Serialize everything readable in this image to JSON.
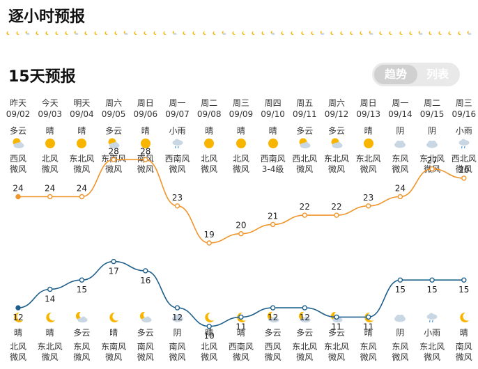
{
  "sections": {
    "hourly_title": "逐小时预报",
    "daily_title": "15天预报"
  },
  "toggle": {
    "trend_label": "趋势",
    "list_label": "列表"
  },
  "days": [
    {
      "day": "昨天",
      "date": "09/02",
      "day_weather": "多云",
      "day_icon": "cloud-sun-icon",
      "day_wind_dir": "西风",
      "day_wind_level": "微风",
      "night_icon": "moon-icon",
      "night_weather": "晴",
      "night_wind_dir": "北风",
      "night_wind_level": "微风"
    },
    {
      "day": "今天",
      "date": "09/03",
      "day_weather": "晴",
      "day_icon": "sun-icon",
      "day_wind_dir": "北风",
      "day_wind_level": "微风",
      "night_icon": "moon-icon",
      "night_weather": "晴",
      "night_wind_dir": "东北风",
      "night_wind_level": "微风"
    },
    {
      "day": "明天",
      "date": "09/04",
      "day_weather": "晴",
      "day_icon": "sun-icon",
      "day_wind_dir": "东北风",
      "day_wind_level": "微风",
      "night_icon": "cloud-moon-icon",
      "night_weather": "多云",
      "night_wind_dir": "东风",
      "night_wind_level": "微风"
    },
    {
      "day": "周六",
      "date": "09/05",
      "day_weather": "多云",
      "day_icon": "cloud-sun-icon",
      "day_wind_dir": "东南风",
      "day_wind_level": "微风",
      "night_icon": "moon-icon",
      "night_weather": "晴",
      "night_wind_dir": "东南风",
      "night_wind_level": "微风"
    },
    {
      "day": "周日",
      "date": "09/06",
      "day_weather": "晴",
      "day_icon": "sun-icon",
      "day_wind_dir": "南风",
      "day_wind_level": "微风",
      "night_icon": "cloud-moon-icon",
      "night_weather": "多云",
      "night_wind_dir": "南风",
      "night_wind_level": "微风"
    },
    {
      "day": "周一",
      "date": "09/07",
      "day_weather": "小雨",
      "day_icon": "rain-icon",
      "day_wind_dir": "西南风",
      "day_wind_level": "微风",
      "night_icon": "cloud-icon",
      "night_weather": "阴",
      "night_wind_dir": "南风",
      "night_wind_level": "微风"
    },
    {
      "day": "周二",
      "date": "09/08",
      "day_weather": "晴",
      "day_icon": "sun-icon",
      "day_wind_dir": "北风",
      "day_wind_level": "微风",
      "night_icon": "moon-icon",
      "night_weather": "晴",
      "night_wind_dir": "北风",
      "night_wind_level": "微风"
    },
    {
      "day": "周三",
      "date": "09/09",
      "day_weather": "晴",
      "day_icon": "sun-icon",
      "day_wind_dir": "北风",
      "day_wind_level": "微风",
      "night_icon": "moon-icon",
      "night_weather": "晴",
      "night_wind_dir": "西南风",
      "night_wind_level": "微风"
    },
    {
      "day": "周四",
      "date": "09/10",
      "day_weather": "晴",
      "day_icon": "sun-icon",
      "day_wind_dir": "西南风",
      "day_wind_level": "3-4级",
      "night_icon": "cloud-moon-icon",
      "night_weather": "多云",
      "night_wind_dir": "西风",
      "night_wind_level": "微风"
    },
    {
      "day": "周五",
      "date": "09/11",
      "day_weather": "多云",
      "day_icon": "cloud-sun-icon",
      "day_wind_dir": "西北风",
      "day_wind_level": "微风",
      "night_icon": "cloud-moon-icon",
      "night_weather": "多云",
      "night_wind_dir": "东北风",
      "night_wind_level": "微风"
    },
    {
      "day": "周六",
      "date": "09/12",
      "day_weather": "多云",
      "day_icon": "cloud-sun-icon",
      "day_wind_dir": "东北风",
      "day_wind_level": "微风",
      "night_icon": "cloud-moon-icon",
      "night_weather": "多云",
      "night_wind_dir": "东北风",
      "night_wind_level": "微风"
    },
    {
      "day": "周日",
      "date": "09/13",
      "day_weather": "晴",
      "day_icon": "sun-icon",
      "day_wind_dir": "东北风",
      "day_wind_level": "微风",
      "night_icon": "moon-icon",
      "night_weather": "晴",
      "night_wind_dir": "东风",
      "night_wind_level": "微风"
    },
    {
      "day": "周一",
      "date": "09/14",
      "day_weather": "阴",
      "day_icon": "cloud-icon",
      "day_wind_dir": "东风",
      "day_wind_level": "微风",
      "night_icon": "cloud-icon",
      "night_weather": "阴",
      "night_wind_dir": "东风",
      "night_wind_level": "微风"
    },
    {
      "day": "周二",
      "date": "09/15",
      "day_weather": "阴",
      "day_icon": "cloud-icon",
      "day_wind_dir": "东北风",
      "day_wind_level": "微风",
      "night_icon": "rain-icon",
      "night_weather": "小雨",
      "night_wind_dir": "东北风",
      "night_wind_level": "微风"
    },
    {
      "day": "周三",
      "date": "09/16",
      "day_weather": "小雨",
      "day_icon": "rain-icon",
      "day_wind_dir": "西北风",
      "day_wind_level": "微风",
      "night_icon": "moon-icon",
      "night_weather": "晴",
      "night_wind_dir": "南风",
      "night_wind_level": "微风"
    }
  ],
  "chart_data": {
    "type": "line",
    "x": [
      "09/02",
      "09/03",
      "09/04",
      "09/05",
      "09/06",
      "09/07",
      "09/08",
      "09/09",
      "09/10",
      "09/11",
      "09/12",
      "09/13",
      "09/14",
      "09/15",
      "09/16"
    ],
    "series": [
      {
        "values": [
          24,
          24,
          24,
          28,
          28,
          23,
          19,
          20,
          21,
          22,
          22,
          23,
          24,
          27,
          26
        ],
        "color": "#f0952a"
      },
      {
        "values": [
          12,
          14,
          15,
          17,
          16,
          12,
          10,
          11,
          12,
          12,
          11,
          11,
          15,
          15,
          15
        ],
        "color": "#1f5f8b"
      }
    ],
    "grid": false
  },
  "colors": {
    "high_line": "#f0952a",
    "low_line": "#1f5f8b",
    "sun": "#f7b500",
    "cloud": "#c9d6e3"
  }
}
